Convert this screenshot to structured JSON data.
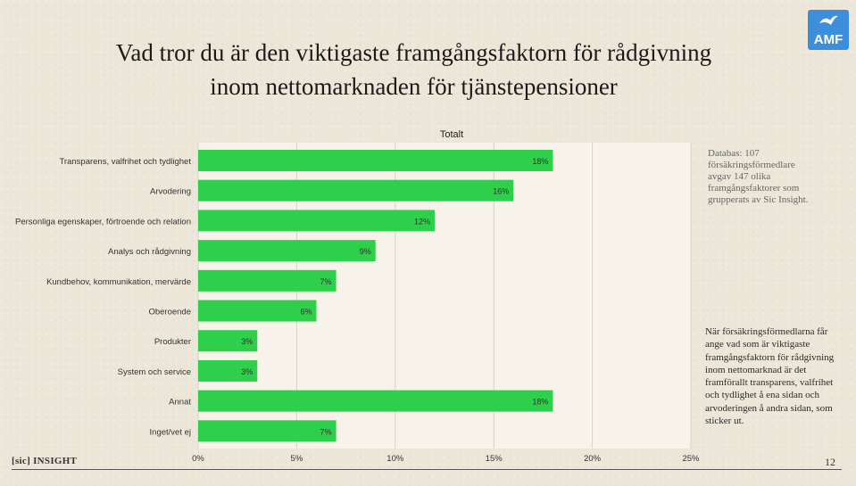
{
  "title_lines": [
    "Vad tror du är den viktigaste framgångsfaktorn för rådgivning",
    "inom nettomarknaden för tjänstepensioner"
  ],
  "logo": {
    "text": "AMF",
    "color": "#3d8fdc",
    "icon": "bird-icon"
  },
  "chart_data": {
    "type": "bar",
    "orientation": "horizontal",
    "series_name": "Totalt",
    "categories": [
      "Transparens, valfrihet och tydlighet",
      "Arvodering",
      "Personliga egenskaper, förtroende och relation",
      "Analys och rådgivning",
      "Kundbehov, kommunikation, mervärde",
      "Oberoende",
      "Produkter",
      "System och service",
      "Annat",
      "Inget/vet ej"
    ],
    "values": [
      18,
      16,
      12,
      9,
      7,
      6,
      3,
      3,
      18,
      7
    ],
    "value_labels": [
      "18%",
      "16%",
      "12%",
      "9%",
      "7%",
      "6%",
      "3%",
      "3%",
      "18%",
      "7%"
    ],
    "x_ticks": [
      0,
      5,
      10,
      15,
      20,
      25
    ],
    "x_tick_labels": [
      "0%",
      "5%",
      "10%",
      "15%",
      "20%",
      "25%"
    ],
    "xlim": [
      0,
      25
    ],
    "bar_color": "#2ecf4a",
    "grid": true
  },
  "notes": {
    "top": "Databas: 107 försäkringsförmedlare avgav 147 olika framgångsfaktorer som grupperats av Sic Insight.",
    "side": "När försäkringsförmedlarna får ange vad som är viktigaste framgångsfaktorn för rådgivning inom nettomarknad är det framförallt transparens, valfrihet och tydlighet å ena sidan och arvoderingen å andra sidan, som sticker ut."
  },
  "footer": {
    "brand": "[sic] INSIGHT",
    "page_number": "12"
  }
}
